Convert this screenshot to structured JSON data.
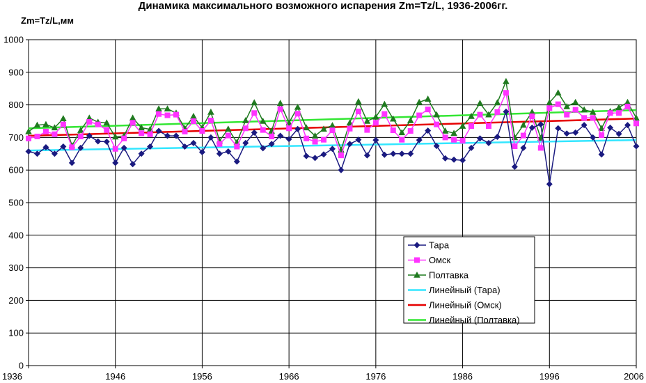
{
  "chart_data": {
    "type": "line",
    "title": "Динамика максимального возможного испарения Zm=Tz/L, 1936-2006гг.",
    "ylabel": "Zm=Tz/L,мм",
    "xlabel": "",
    "ylim": [
      0,
      1000
    ],
    "xlim": [
      1936,
      2006
    ],
    "y_ticks": [
      "0",
      "100",
      "200",
      "300",
      "400",
      "500",
      "600",
      "700",
      "800",
      "900",
      "1000"
    ],
    "x_ticks": [
      "1936",
      "1946",
      "1956",
      "1966",
      "1976",
      "1986",
      "1996",
      "2006"
    ],
    "grid": true,
    "legend_position": "bottom-right",
    "x": [
      1936,
      1937,
      1938,
      1939,
      1940,
      1941,
      1942,
      1943,
      1944,
      1945,
      1946,
      1947,
      1948,
      1949,
      1950,
      1951,
      1952,
      1953,
      1954,
      1955,
      1956,
      1957,
      1958,
      1959,
      1960,
      1961,
      1962,
      1963,
      1964,
      1965,
      1966,
      1967,
      1968,
      1969,
      1970,
      1971,
      1972,
      1973,
      1974,
      1975,
      1976,
      1977,
      1978,
      1979,
      1980,
      1981,
      1982,
      1983,
      1984,
      1985,
      1986,
      1987,
      1988,
      1989,
      1990,
      1991,
      1992,
      1993,
      1994,
      1995,
      1996,
      1997,
      1998,
      1999,
      2000,
      2001,
      2002,
      2003,
      2004,
      2005,
      2006
    ],
    "series": [
      {
        "name": "Тара",
        "color": "#1a1a80",
        "marker": "diamond",
        "values": [
          657,
          650,
          670,
          650,
          672,
          622,
          668,
          705,
          688,
          687,
          622,
          668,
          618,
          650,
          672,
          720,
          705,
          705,
          672,
          683,
          655,
          700,
          650,
          657,
          626,
          683,
          715,
          667,
          680,
          705,
          695,
          726,
          643,
          637,
          648,
          665,
          600,
          680,
          693,
          645,
          692,
          647,
          650,
          650,
          650,
          692,
          721,
          674,
          636,
          632,
          630,
          668,
          697,
          683,
          702,
          779,
          610,
          668,
          730,
          740,
          557,
          728,
          712,
          715,
          738,
          700,
          648,
          730,
          711,
          738,
          673
        ]
      },
      {
        "name": "Омск",
        "color": "#ff33ff",
        "marker": "square",
        "values": [
          697,
          703,
          718,
          710,
          740,
          670,
          703,
          748,
          740,
          723,
          665,
          697,
          745,
          713,
          710,
          772,
          768,
          770,
          718,
          750,
          720,
          752,
          680,
          706,
          672,
          728,
          775,
          723,
          703,
          787,
          728,
          773,
          697,
          687,
          693,
          722,
          645,
          727,
          780,
          723,
          745,
          772,
          722,
          693,
          720,
          768,
          786,
          740,
          700,
          693,
          690,
          735,
          770,
          735,
          778,
          837,
          673,
          706,
          765,
          668,
          790,
          802,
          770,
          785,
          760,
          760,
          707,
          775,
          775,
          795,
          743
        ]
      },
      {
        "name": "Полтавка",
        "color": "#1f7a1f",
        "marker": "triangle",
        "values": [
          718,
          738,
          740,
          730,
          758,
          675,
          722,
          760,
          747,
          745,
          702,
          705,
          760,
          730,
          725,
          788,
          788,
          775,
          728,
          765,
          730,
          778,
          690,
          726,
          685,
          752,
          807,
          750,
          720,
          805,
          745,
          793,
          730,
          705,
          726,
          737,
          662,
          745,
          810,
          750,
          763,
          802,
          757,
          715,
          752,
          808,
          818,
          770,
          720,
          713,
          735,
          765,
          805,
          770,
          807,
          872,
          700,
          738,
          778,
          698,
          807,
          837,
          795,
          808,
          785,
          778,
          728,
          780,
          792,
          808,
          760
        ]
      }
    ],
    "trendlines": [
      {
        "name": "Линейный (Тара)",
        "color": "#33e6ff",
        "start": 660,
        "end": 692
      },
      {
        "name": "Линейный (Омск)",
        "color": "#e60000",
        "start": 705,
        "end": 758
      },
      {
        "name": "Линейный (Полтавка)",
        "color": "#33e633",
        "start": 728,
        "end": 784
      }
    ]
  }
}
